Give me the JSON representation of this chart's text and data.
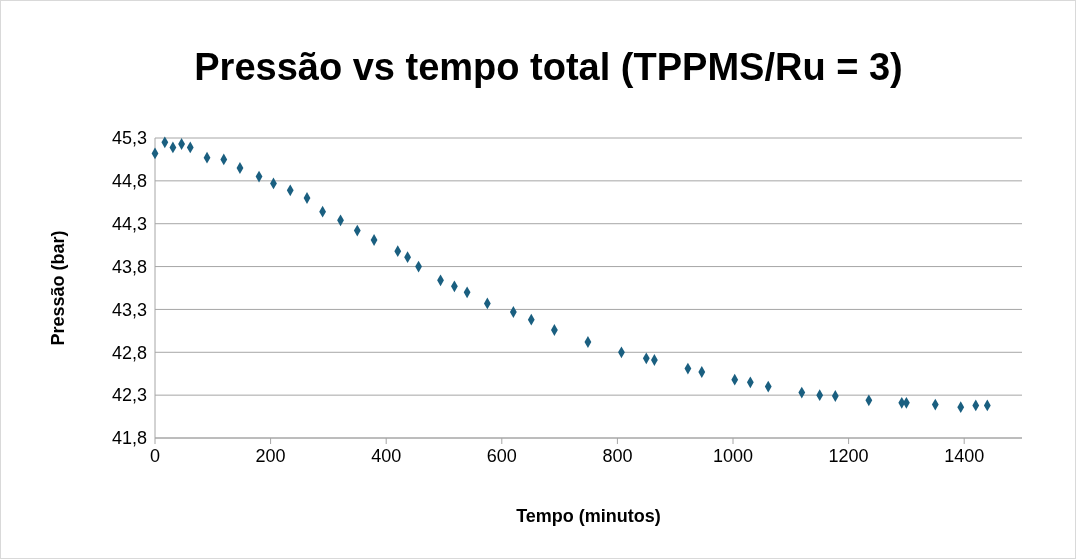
{
  "chart_data": {
    "type": "scatter",
    "title": "Pressão vs tempo total (TPPMS/Ru = 3)",
    "xlabel": "Tempo (minutos)",
    "ylabel": "Pressão (bar)",
    "series": [
      {
        "color": "#1a5f80",
        "x": [
          0,
          17,
          31,
          46,
          61,
          90,
          119,
          147,
          180,
          205,
          234,
          263,
          290,
          321,
          350,
          379,
          420,
          437,
          456,
          494,
          518,
          540,
          575,
          620,
          651,
          691,
          749,
          807,
          850,
          864,
          922,
          946,
          1003,
          1030,
          1061,
          1119,
          1150,
          1177,
          1235,
          1292,
          1300,
          1350,
          1394,
          1420,
          1440
        ],
        "values": [
          45.12,
          45.25,
          45.19,
          45.23,
          45.19,
          45.07,
          45.05,
          44.95,
          44.85,
          44.77,
          44.69,
          44.6,
          44.44,
          44.34,
          44.22,
          44.11,
          43.98,
          43.91,
          43.8,
          43.64,
          43.57,
          43.5,
          43.37,
          43.27,
          43.18,
          43.06,
          42.92,
          42.8,
          42.73,
          42.71,
          42.61,
          42.57,
          42.48,
          42.45,
          42.4,
          42.33,
          42.3,
          42.29,
          42.24,
          42.21,
          42.21,
          42.19,
          42.16,
          42.18,
          42.18
        ]
      }
    ],
    "xlim": [
      0,
      1500
    ],
    "xticks": [
      0,
      200,
      400,
      600,
      800,
      1000,
      1200,
      1400
    ],
    "ylim": [
      41.8,
      45.3
    ],
    "yticks": [
      {
        "value": 41.8,
        "label": "41,8"
      },
      {
        "value": 42.3,
        "label": "42,3"
      },
      {
        "value": 42.8,
        "label": "42,8"
      },
      {
        "value": 43.3,
        "label": "43,3"
      },
      {
        "value": 43.8,
        "label": "43,8"
      },
      {
        "value": 44.3,
        "label": "44,3"
      },
      {
        "value": 44.8,
        "label": "44,8"
      },
      {
        "value": 45.3,
        "label": "45,3"
      }
    ],
    "grid": "y",
    "marker": "diamond"
  }
}
